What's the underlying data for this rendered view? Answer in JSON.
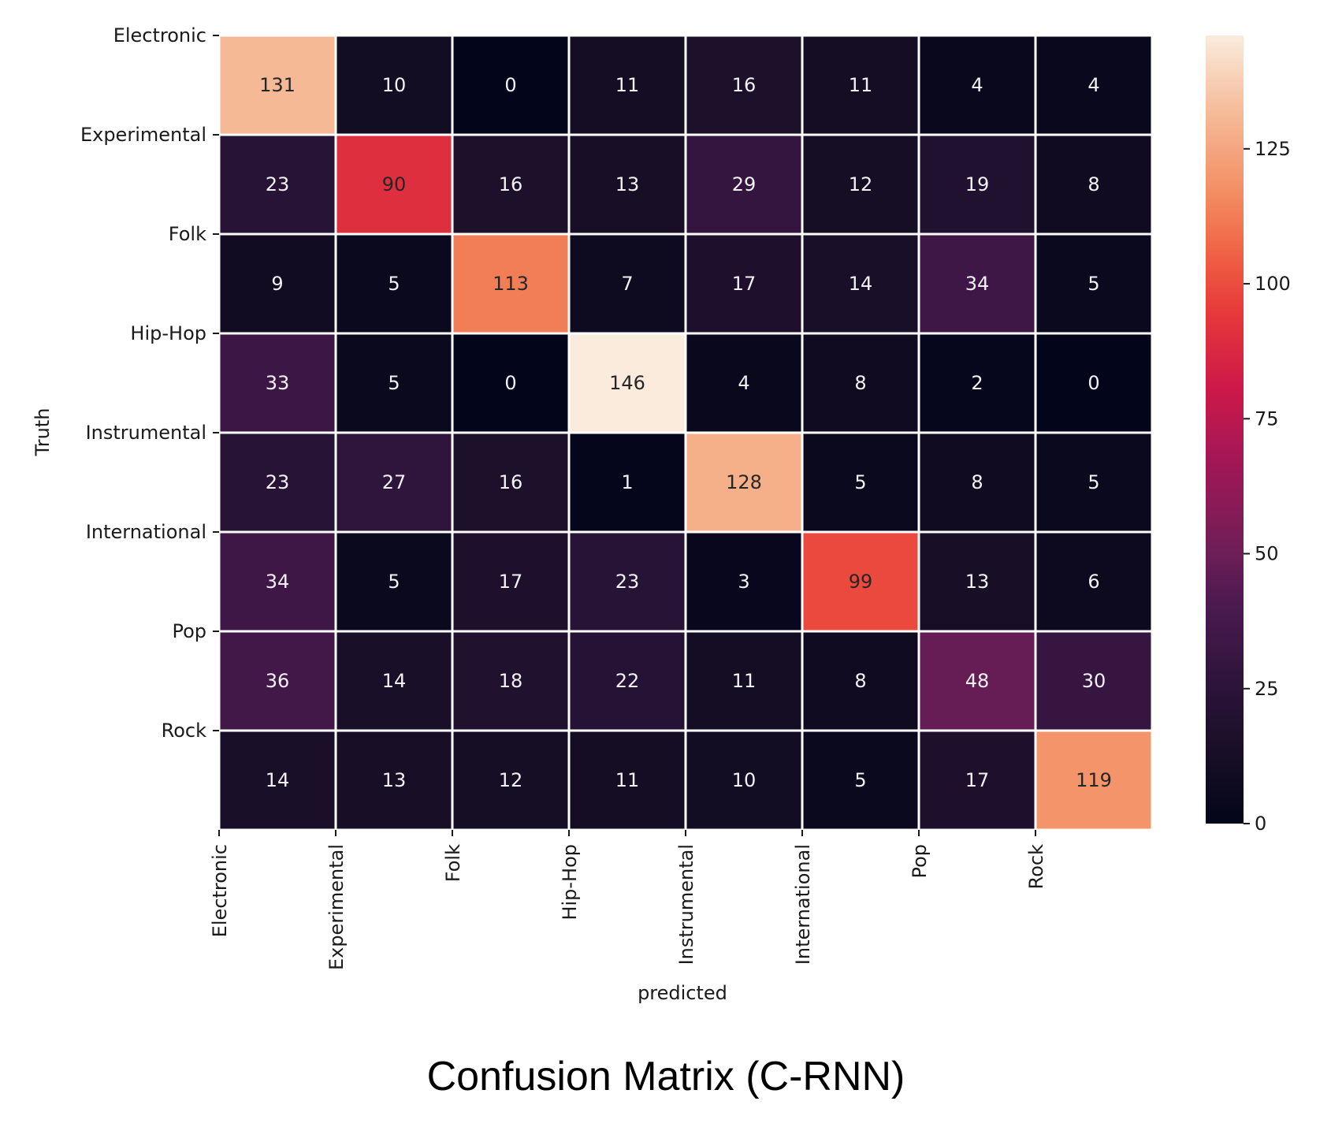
{
  "chart_data": {
    "type": "heatmap",
    "caption": "Confusion Matrix (C-RNN)",
    "xlabel": "predicted",
    "ylabel": "Truth",
    "x_categories": [
      "Electronic",
      "Experimental",
      "Folk",
      "Hip-Hop",
      "Instrumental",
      "International",
      "Pop",
      "Rock"
    ],
    "y_categories": [
      "Electronic",
      "Experimental",
      "Folk",
      "Hip-Hop",
      "Instrumental",
      "International",
      "Pop",
      "Rock"
    ],
    "values": [
      [
        131,
        10,
        0,
        11,
        16,
        11,
        4,
        4
      ],
      [
        23,
        90,
        16,
        13,
        29,
        12,
        19,
        8
      ],
      [
        9,
        5,
        113,
        7,
        17,
        14,
        34,
        5
      ],
      [
        33,
        5,
        0,
        146,
        4,
        8,
        2,
        0
      ],
      [
        23,
        27,
        16,
        1,
        128,
        5,
        8,
        5
      ],
      [
        34,
        5,
        17,
        23,
        3,
        99,
        13,
        6
      ],
      [
        36,
        14,
        18,
        22,
        11,
        8,
        48,
        30
      ],
      [
        14,
        13,
        12,
        11,
        10,
        5,
        17,
        119
      ]
    ],
    "colorbar": {
      "min": 0,
      "max": 146,
      "ticks": [
        0,
        25,
        50,
        75,
        100,
        125
      ],
      "colormap": "rocket"
    },
    "colors": {
      "cell_border": "#ffffff",
      "text_dark_cell": "#f2f2f2",
      "text_light_cell": "#262626"
    }
  }
}
